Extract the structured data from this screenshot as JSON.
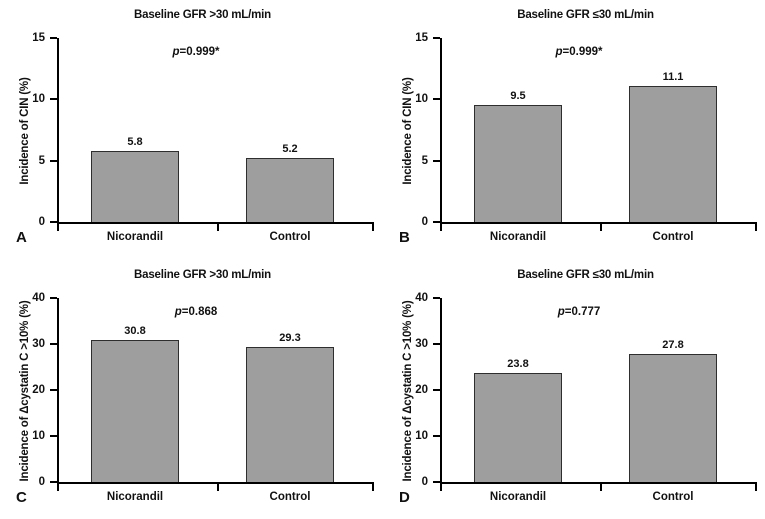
{
  "figure": {
    "background": "#ffffff",
    "bar_fill": "#9e9e9e",
    "bar_border": "#2e2e2e",
    "axis_color": "#000000",
    "text_color": "#111111"
  },
  "chart_data": [
    {
      "type": "bar",
      "panel_label": "A",
      "title": "Baseline GFR >30 mL/min",
      "p_italic": "p",
      "p_rest": "=0.999*",
      "p_text": "p=0.999*",
      "categories": [
        "Nicorandil",
        "Control"
      ],
      "values": [
        5.8,
        5.2
      ],
      "value_labels": [
        "5.8",
        "5.2"
      ],
      "ylabel": "Incidence of CIN (%)",
      "ylim": [
        0,
        15
      ],
      "yticks": [
        0,
        5,
        10,
        15
      ],
      "grid": false,
      "legend": false
    },
    {
      "type": "bar",
      "panel_label": "B",
      "title": "Baseline GFR ≤30 mL/min",
      "p_italic": "p",
      "p_rest": "=0.999*",
      "p_text": "p=0.999*",
      "categories": [
        "Nicorandil",
        "Control"
      ],
      "values": [
        9.5,
        11.1
      ],
      "value_labels": [
        "9.5",
        "11.1"
      ],
      "ylabel": "Incidence of CIN (%)",
      "ylim": [
        0,
        15
      ],
      "yticks": [
        0,
        5,
        10,
        15
      ],
      "grid": false,
      "legend": false
    },
    {
      "type": "bar",
      "panel_label": "C",
      "title": "Baseline GFR >30 mL/min",
      "p_italic": "p",
      "p_rest": "=0.868",
      "p_text": "p=0.868",
      "categories": [
        "Nicorandil",
        "Control"
      ],
      "values": [
        30.8,
        29.3
      ],
      "value_labels": [
        "30.8",
        "29.3"
      ],
      "ylabel": "Incidence of Δcystatin C >10% (%)",
      "ylim": [
        0,
        40
      ],
      "yticks": [
        0,
        10,
        20,
        30,
        40
      ],
      "grid": false,
      "legend": false
    },
    {
      "type": "bar",
      "panel_label": "D",
      "title": "Baseline GFR ≤30 mL/min",
      "p_italic": "p",
      "p_rest": "=0.777",
      "p_text": "p=0.777",
      "categories": [
        "Nicorandil",
        "Control"
      ],
      "values": [
        23.8,
        27.8
      ],
      "value_labels": [
        "23.8",
        "27.8"
      ],
      "ylabel": "Incidence of Δcystatin C >10% (%)",
      "ylim": [
        0,
        40
      ],
      "yticks": [
        0,
        10,
        20,
        30,
        40
      ],
      "grid": false,
      "legend": false
    }
  ]
}
